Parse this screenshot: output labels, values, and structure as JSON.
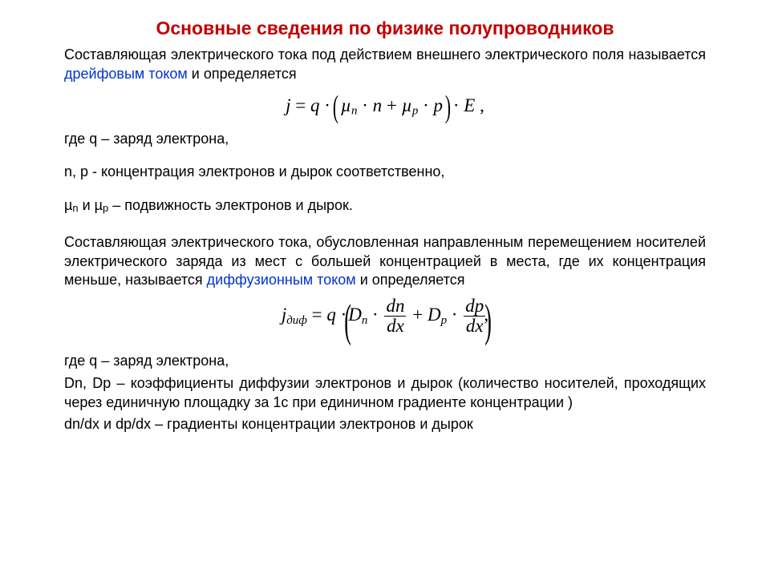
{
  "colors": {
    "title": "#c00000",
    "link": "#0033cc",
    "text": "#000000",
    "background": "#ffffff"
  },
  "fonts": {
    "body_family": "Arial",
    "body_size_pt": 14,
    "equation_family": "Times New Roman",
    "equation_size_pt": 17,
    "title_size_pt": 17,
    "title_weight": "bold"
  },
  "title": "Основные сведения по физике полупроводников",
  "p1_a": "Составляющая электрического тока под действием внешнего электрического поля называется ",
  "p1_link": "дрейфовым током",
  "p1_b": " и определяется",
  "eq1": {
    "lhs": "j",
    "q": "q",
    "mu": "µ",
    "n_sub": "n",
    "p_sub": "p",
    "n": "n",
    "p": "p",
    "E": "E",
    "tail": ","
  },
  "def_q": "где q – заряд электрона,",
  "def_np": "n, p - концентрация электронов и дырок соответственно,",
  "def_mu_a": "µ",
  "def_mu_n": "n",
  "def_mu_mid": " и µ",
  "def_mu_p": "p",
  "def_mu_b": " – подвижность электронов и дырок.",
  "p2_a": "Составляющая электрического тока, обусловленная направленным перемещением носителей электрического заряда из мест с большей концентрацией в места, где их концентрация меньше, называется ",
  "p2_link": "диффузионным током",
  "p2_b": " и определяется",
  "eq2": {
    "lhs_j": "j",
    "lhs_sub": "диф",
    "q": "q",
    "D": "D",
    "n_sub": "n",
    "p_sub": "p",
    "dn": "dn",
    "dx": "dx",
    "dp": "dp",
    "tail": ","
  },
  "def2_q": "где q – заряд электрона,",
  "def2_D": "Dn, Dp – коэффициенты диффузии электронов и дырок (количество носителей, проходящих через единичную площадку за 1с при единичном градиенте концентрации )",
  "def2_grad": "dn/dx и dp/dx – градиенты концентрации электронов и дырок"
}
